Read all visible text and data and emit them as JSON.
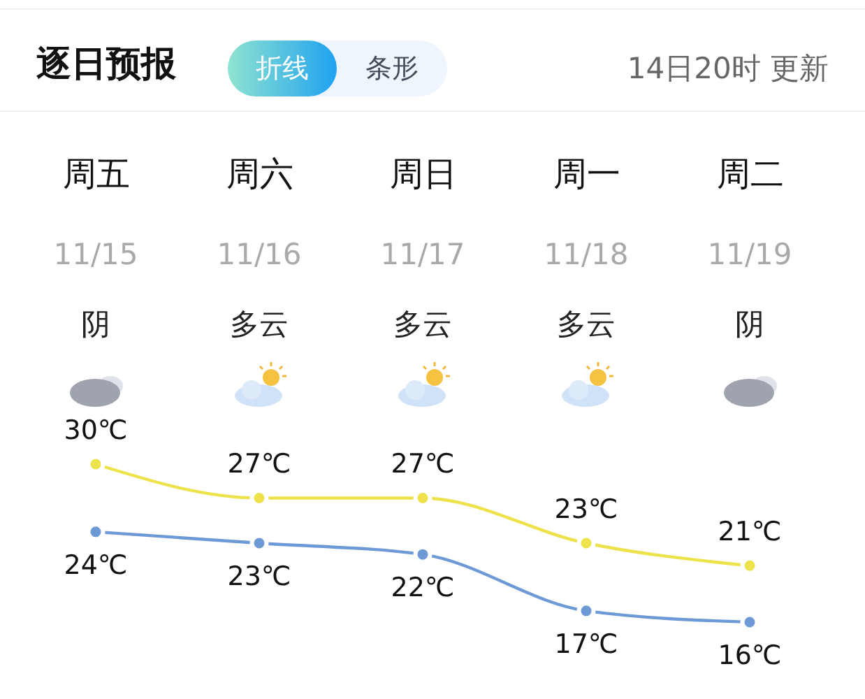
{
  "chart_data": {
    "type": "line",
    "title": "逐日预报",
    "categories": [
      "周五",
      "周六",
      "周日",
      "周一",
      "周二"
    ],
    "series": [
      {
        "color": "#eee24a",
        "values": [
          30,
          27,
          27,
          23,
          21
        ],
        "value_labels": [
          "30℃",
          "27℃",
          "27℃",
          "23℃",
          "21℃"
        ]
      },
      {
        "color": "#6d9ad6",
        "values": [
          24,
          23,
          22,
          17,
          16
        ],
        "value_labels": [
          "24℃",
          "23℃",
          "22℃",
          "17℃",
          "16℃"
        ]
      }
    ],
    "marker": "circle",
    "annotations": [
      "折线",
      "条形",
      "14日20时 更新",
      "11/15",
      "11/16",
      "11/17",
      "11/18",
      "11/19",
      "阴",
      "多云",
      "多云",
      "多云",
      "阴"
    ]
  }
}
